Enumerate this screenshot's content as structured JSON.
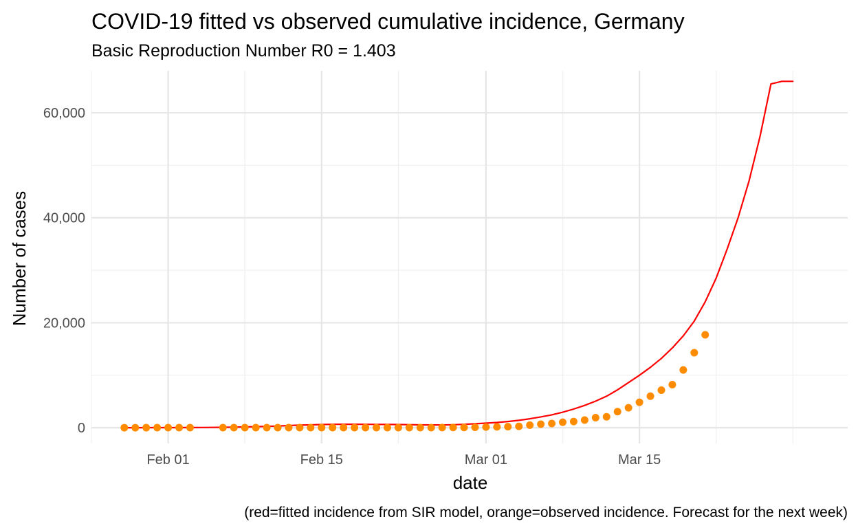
{
  "chart_data": {
    "type": "line",
    "title": "COVID-19 fitted vs observed cumulative incidence, Germany",
    "subtitle": "Basic Reproduction Number R0 = 1.403",
    "xlabel": "date",
    "ylabel": "Number of cases",
    "caption": "(red=fitted incidence from SIR model, orange=observed incidence. Forecast for the next week)",
    "x_axis": {
      "type": "date",
      "range": [
        "2020-01-25",
        "2020-04-03"
      ],
      "major_ticks": [
        "2020-02-01",
        "2020-02-15",
        "2020-03-01",
        "2020-03-15"
      ],
      "tick_labels": [
        "Feb 01",
        "Feb 15",
        "Mar 01",
        "Mar 15"
      ],
      "minor_ticks": [
        "2020-01-25",
        "2020-02-08",
        "2020-02-22",
        "2020-03-08",
        "2020-03-22",
        "2020-03-29",
        "2020-04-04"
      ]
    },
    "y_axis": {
      "range": [
        -3000,
        68000
      ],
      "major_ticks": [
        0,
        20000,
        40000,
        60000
      ],
      "tick_labels": [
        "0",
        "20,000",
        "40,000",
        "60,000"
      ],
      "minor_ticks": [
        10000,
        30000,
        50000
      ]
    },
    "grid": true,
    "series": [
      {
        "color": "#ff0000",
        "kind": "line",
        "x": [
          "2020-01-28",
          "2020-01-29",
          "2020-01-30",
          "2020-01-31",
          "2020-02-01",
          "2020-02-02",
          "2020-02-03",
          "2020-02-04",
          "2020-02-05",
          "2020-02-06",
          "2020-02-07",
          "2020-02-08",
          "2020-02-09",
          "2020-02-10",
          "2020-02-11",
          "2020-02-12",
          "2020-02-13",
          "2020-02-14",
          "2020-02-15",
          "2020-02-16",
          "2020-02-17",
          "2020-02-18",
          "2020-02-19",
          "2020-02-20",
          "2020-02-21",
          "2020-02-22",
          "2020-02-23",
          "2020-02-24",
          "2020-02-25",
          "2020-02-26",
          "2020-02-27",
          "2020-02-28",
          "2020-02-29",
          "2020-03-01",
          "2020-03-02",
          "2020-03-03",
          "2020-03-04",
          "2020-03-05",
          "2020-03-06",
          "2020-03-07",
          "2020-03-08",
          "2020-03-09",
          "2020-03-10",
          "2020-03-11",
          "2020-03-12",
          "2020-03-13",
          "2020-03-14",
          "2020-03-15",
          "2020-03-16",
          "2020-03-17",
          "2020-03-18",
          "2020-03-19",
          "2020-03-20",
          "2020-03-21",
          "2020-03-22",
          "2020-03-23",
          "2020-03-24",
          "2020-03-25",
          "2020-03-26",
          "2020-03-27",
          "2020-03-28",
          "2020-03-29"
        ],
        "y": [
          4,
          5,
          7,
          10,
          14,
          19,
          27,
          38,
          53,
          74,
          104,
          146,
          200,
          250,
          320,
          400,
          480,
          540,
          600,
          640,
          660,
          650,
          640,
          630,
          620,
          600,
          570,
          540,
          520,
          510,
          560,
          640,
          740,
          860,
          1000,
          1180,
          1400,
          1700,
          2050,
          2450,
          2950,
          3550,
          4250,
          5050,
          6000,
          7200,
          8600,
          10000,
          11500,
          13200,
          15200,
          17500,
          20300,
          24000,
          28500,
          34000,
          40000,
          47000,
          55500,
          65500,
          66000,
          66000
        ]
      },
      {
        "color": "#ff8c00",
        "kind": "points",
        "x": [
          "2020-01-28",
          "2020-01-29",
          "2020-01-30",
          "2020-01-31",
          "2020-02-01",
          "2020-02-02",
          "2020-02-03",
          "2020-02-06",
          "2020-02-07",
          "2020-02-08",
          "2020-02-09",
          "2020-02-10",
          "2020-02-11",
          "2020-02-12",
          "2020-02-13",
          "2020-02-14",
          "2020-02-15",
          "2020-02-16",
          "2020-02-17",
          "2020-02-18",
          "2020-02-19",
          "2020-02-20",
          "2020-02-21",
          "2020-02-22",
          "2020-02-23",
          "2020-02-24",
          "2020-02-25",
          "2020-02-26",
          "2020-02-27",
          "2020-02-28",
          "2020-02-29",
          "2020-03-01",
          "2020-03-02",
          "2020-03-03",
          "2020-03-04",
          "2020-03-05",
          "2020-03-06",
          "2020-03-07",
          "2020-03-08",
          "2020-03-09",
          "2020-03-10",
          "2020-03-11",
          "2020-03-12",
          "2020-03-13",
          "2020-03-14",
          "2020-03-15",
          "2020-03-16",
          "2020-03-17",
          "2020-03-18",
          "2020-03-19",
          "2020-03-20",
          "2020-03-21"
        ],
        "y": [
          4,
          4,
          5,
          8,
          10,
          12,
          12,
          12,
          13,
          14,
          14,
          14,
          16,
          16,
          16,
          16,
          16,
          16,
          16,
          16,
          16,
          16,
          16,
          16,
          16,
          16,
          18,
          27,
          46,
          48,
          79,
          130,
          159,
          196,
          262,
          482,
          670,
          799,
          1040,
          1176,
          1457,
          1908,
          2078,
          3062,
          3795,
          4838,
          6012,
          7156,
          8198,
          10999,
          14297,
          17700
        ]
      }
    ]
  }
}
